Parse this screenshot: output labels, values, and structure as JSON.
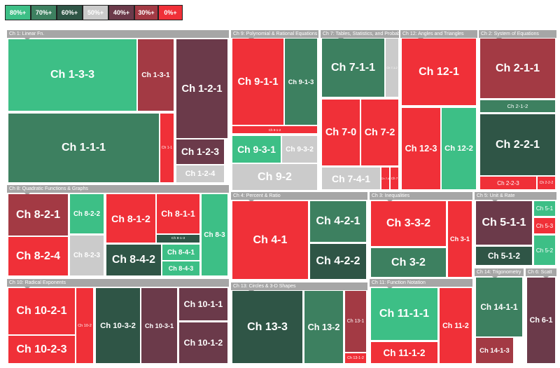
{
  "legend": [
    {
      "label": "80%+",
      "color": "#3dbf86"
    },
    {
      "label": "70%+",
      "color": "#3d8060"
    },
    {
      "label": "60%+",
      "color": "#2f5546"
    },
    {
      "label": "50%+",
      "color": "#cbcbcb"
    },
    {
      "label": "40%+",
      "color": "#6b3a4a"
    },
    {
      "label": "30%+",
      "color": "#a33a44"
    },
    {
      "label": "0%+",
      "color": "#f03038"
    }
  ],
  "groups": [
    {
      "title": "Ch 1: Linear Fn.",
      "tiles": [
        {
          "label": "Ch 1-3-3",
          "color": "#3dbf86"
        },
        {
          "label": "Ch 1-3-1",
          "color": "#a33a44"
        },
        {
          "label": "Ch 1-2-1",
          "color": "#6b3a4a"
        },
        {
          "label": "Ch 1-1-1",
          "color": "#3d8060"
        },
        {
          "label": "Ch 1-1",
          "color": "#f03038"
        },
        {
          "label": "Ch 1-2-3",
          "color": "#6b3a4a"
        },
        {
          "label": "Ch 1-2-4",
          "color": "#cbcbcb"
        }
      ]
    },
    {
      "title": "Ch 9: Polynomial & Rational Equations",
      "tiles": [
        {
          "label": "Ch 9-1-1",
          "color": "#f03038"
        },
        {
          "label": "Ch 9-1-3",
          "color": "#3d8060"
        },
        {
          "label": "Ch 9-1-2",
          "color": "#f03038"
        },
        {
          "label": "Ch 9-3-1",
          "color": "#3dbf86"
        },
        {
          "label": "Ch 9-3-2",
          "color": "#cbcbcb"
        },
        {
          "label": "Ch 9-2",
          "color": "#cbcbcb"
        }
      ]
    },
    {
      "title": "Ch 7: Tables, Statistics, and Probab",
      "tiles": [
        {
          "label": "Ch 7-1-1",
          "color": "#3d8060"
        },
        {
          "label": "Ch 7-1-2",
          "color": "#cbcbcb"
        },
        {
          "label": "Ch 7-0",
          "color": "#f03038"
        },
        {
          "label": "Ch 7-2",
          "color": "#f03038"
        },
        {
          "label": "Ch 7-4-1",
          "color": "#cbcbcb"
        },
        {
          "label": "Ch 7-4",
          "color": "#f03038"
        },
        {
          "label": "Ch 7",
          "color": "#f03038"
        }
      ]
    },
    {
      "title": "Ch 12: Angles and Triangles",
      "tiles": [
        {
          "label": "Ch 12-1",
          "color": "#f03038"
        },
        {
          "label": "Ch 12-3",
          "color": "#f03038"
        },
        {
          "label": "Ch 12-2",
          "color": "#3dbf86"
        }
      ]
    },
    {
      "title": "Ch 2: System of Equations",
      "tiles": [
        {
          "label": "Ch 2-1-1",
          "color": "#a33a44"
        },
        {
          "label": "Ch 2-1-2",
          "color": "#3d8060"
        },
        {
          "label": "Ch 2-2-1",
          "color": "#2f5546"
        },
        {
          "label": "Ch 2-2-3",
          "color": "#f03038"
        },
        {
          "label": "Ch 2-2-2",
          "color": "#f03038"
        }
      ]
    },
    {
      "title": "Ch 8: Quadratic Functions & Graphs",
      "tiles": [
        {
          "label": "Ch 8-2-1",
          "color": "#a33a44"
        },
        {
          "label": "Ch 8-2-4",
          "color": "#f03038"
        },
        {
          "label": "Ch 8-2-2",
          "color": "#3dbf86"
        },
        {
          "label": "Ch 8-2-3",
          "color": "#cbcbcb"
        },
        {
          "label": "Ch 8-1-2",
          "color": "#f03038"
        },
        {
          "label": "Ch 8-1-1",
          "color": "#f03038"
        },
        {
          "label": "Ch 8-1-3",
          "color": "#2f5546"
        },
        {
          "label": "Ch 8-4-2",
          "color": "#2f5546"
        },
        {
          "label": "Ch 8-4-1",
          "color": "#3dbf86"
        },
        {
          "label": "Ch 8-4-3",
          "color": "#3dbf86"
        },
        {
          "label": "Ch 8-3",
          "color": "#3dbf86"
        }
      ]
    },
    {
      "title": "Ch 4: Percent & Ratio",
      "tiles": [
        {
          "label": "Ch 4-1",
          "color": "#f03038"
        },
        {
          "label": "Ch 4-2-1",
          "color": "#3d8060"
        },
        {
          "label": "Ch 4-2-2",
          "color": "#2f5546"
        }
      ]
    },
    {
      "title": "Ch 3: Inequalities",
      "tiles": [
        {
          "label": "Ch 3-3-2",
          "color": "#f03038"
        },
        {
          "label": "Ch 3-1",
          "color": "#f03038"
        },
        {
          "label": "Ch 3-2",
          "color": "#3d8060"
        }
      ]
    },
    {
      "title": "Ch 5: Unit & Rate",
      "tiles": [
        {
          "label": "Ch 5-1-1",
          "color": "#6b3a4a"
        },
        {
          "label": "Ch 5-1-2",
          "color": "#2f5546"
        },
        {
          "label": "Ch 5-1",
          "color": "#3dbf86"
        },
        {
          "label": "Ch 5-3",
          "color": "#f03038"
        },
        {
          "label": "Ch 5-2",
          "color": "#3dbf86"
        }
      ]
    },
    {
      "title": "Ch 10: Radical Exponents",
      "tiles": [
        {
          "label": "Ch 10-2-1",
          "color": "#f03038"
        },
        {
          "label": "Ch 10-2-3",
          "color": "#f03038"
        },
        {
          "label": "Ch 10-2",
          "color": "#f03038"
        },
        {
          "label": "Ch 10-3-2",
          "color": "#2f5546"
        },
        {
          "label": "Ch 10-3-1",
          "color": "#6b3a4a"
        },
        {
          "label": "Ch 10-1-1",
          "color": "#6b3a4a"
        },
        {
          "label": "Ch 10-1-2",
          "color": "#6b3a4a"
        }
      ]
    },
    {
      "title": "Ch 13: Circles & 3-D Shapes",
      "tiles": [
        {
          "label": "Ch 13-3",
          "color": "#2f5546"
        },
        {
          "label": "Ch 13-2",
          "color": "#3d8060"
        },
        {
          "label": "Ch 13-1",
          "color": "#a33a44"
        },
        {
          "label": "Ch 13-1-2",
          "color": "#f03038"
        }
      ]
    },
    {
      "title": "Ch 11: Function Notation",
      "tiles": [
        {
          "label": "Ch 11-1-1",
          "color": "#3dbf86"
        },
        {
          "label": "Ch 11-2",
          "color": "#f03038"
        },
        {
          "label": "Ch 11-1-2",
          "color": "#f03038"
        }
      ]
    },
    {
      "title": "Ch 14: Trigonometry",
      "tiles": [
        {
          "label": "Ch 14-1-1",
          "color": "#3d8060"
        },
        {
          "label": "Ch 14-1-3",
          "color": "#a33a44"
        }
      ]
    },
    {
      "title": "Ch 6: Scatt",
      "tiles": [
        {
          "label": "Ch 6-1",
          "color": "#6b3a4a"
        }
      ]
    }
  ]
}
